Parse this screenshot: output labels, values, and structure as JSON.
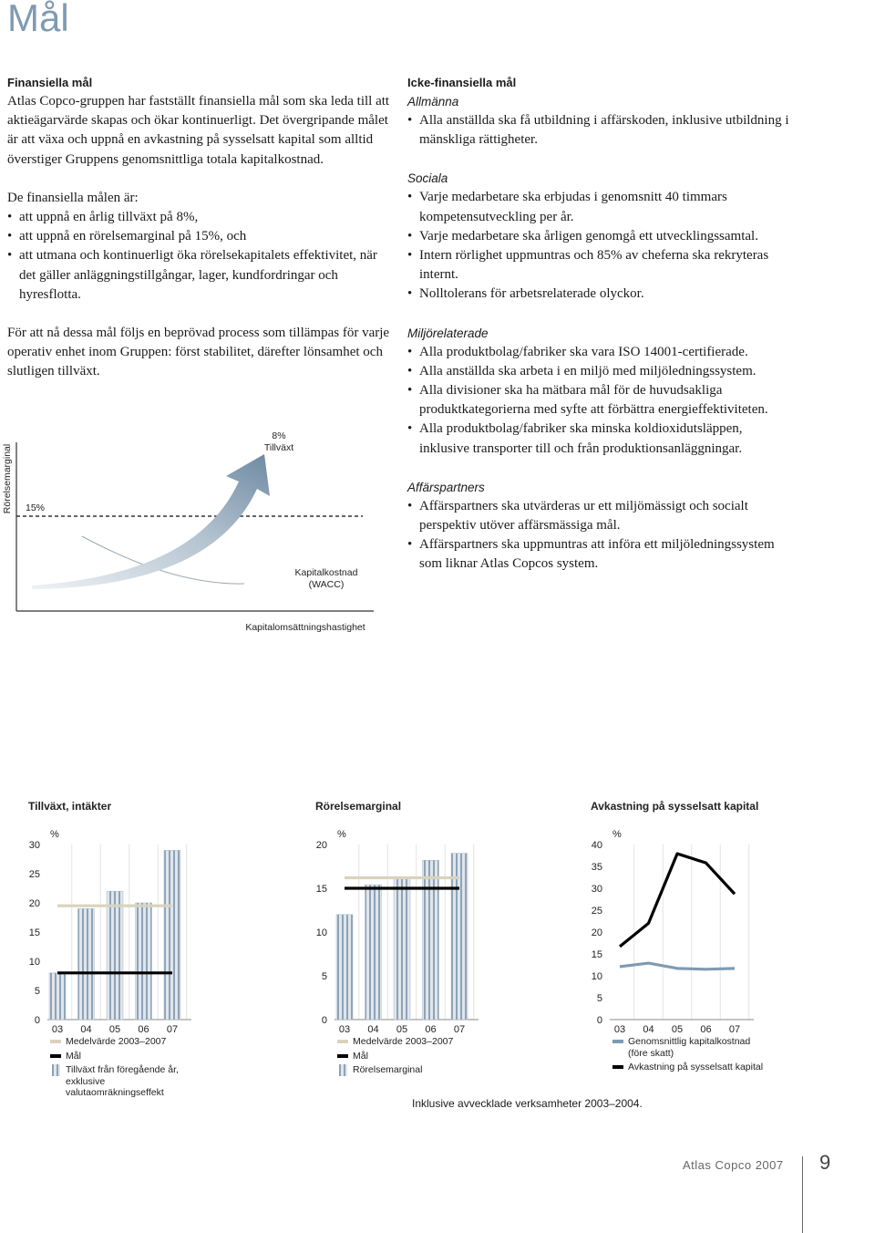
{
  "page_title": "Mål",
  "financial": {
    "heading": "Finansiella mål",
    "intro": "Atlas Copco-gruppen har fastställt finansiella mål som ska leda till att aktieägarvärde skapas och ökar kontinuerligt. Det övergripande målet är att växa och uppnå en avkastning på sysselsatt kapital som alltid överstiger Gruppens genomsnittliga totala kapitalkostnad.",
    "list_intro": "De finansiella målen är:",
    "bullets": [
      "att uppnå en årlig tillväxt på 8%,",
      "att uppnå en rörelsemarginal på 15%, och",
      "att utmana och kontinuerligt öka rörelsekapitalets effektivitet, när det gäller anläggningstillgångar, lager, kundfordringar och hyresflotta."
    ],
    "closing": "För att nå dessa mål följs en beprövad process som tillämpas för varje operativ enhet inom Gruppen: först stabilitet, därefter lönsamhet och slutligen tillväxt."
  },
  "diagram": {
    "y_label": "Rörelsemarginal",
    "x_label": "Kapitalomsättningshastighet",
    "margin_label": "15%",
    "growth_value": "8%",
    "growth_label": "Tillväxt",
    "cost_label": "Kapitalkostnad",
    "cost_abbr": "(WACC)"
  },
  "non_financial": {
    "heading": "Icke-finansiella mål",
    "sections": [
      {
        "title": "Allmänna",
        "bullets": [
          "Alla anställda ska få utbildning i affärskoden, inklusive utbildning i mänskliga rättigheter."
        ]
      },
      {
        "title": "Sociala",
        "bullets": [
          "Varje medarbetare ska erbjudas i genomsnitt 40 timmars kompetensutveckling per år.",
          "Varje medarbetare ska årligen genomgå ett utvecklingssamtal.",
          "Intern rörlighet uppmuntras och 85% av cheferna ska rekryteras internt.",
          "Nolltolerans för arbetsrelaterade olyckor."
        ]
      },
      {
        "title": "Miljörelaterade",
        "bullets": [
          "Alla produktbolag/fabriker ska vara ISO 14001-certifierade.",
          "Alla anställda ska arbeta i en miljö med miljöledningssystem.",
          "Alla divisioner ska ha mätbara mål för de huvudsakliga produktkategorierna med syfte att förbättra energieffektiviteten.",
          "Alla produktbolag/fabriker ska minska koldioxidutsläppen, inklusive transporter till och från produktionsanläggningar."
        ]
      },
      {
        "title": "Affärspartners",
        "bullets": [
          "Affärspartners ska utvärderas ur ett miljömässigt och socialt perspektiv utöver affärsmässiga mål.",
          "Affärspartners ska uppmuntras att införa ett miljöledningssystem som liknar Atlas Copcos system."
        ]
      }
    ]
  },
  "chart_data": [
    {
      "type": "bar",
      "title": "Tillväxt, intäkter",
      "y_unit": "%",
      "categories": [
        "03",
        "04",
        "05",
        "06",
        "07"
      ],
      "ylim": [
        0,
        30
      ],
      "yticks": [
        0,
        5,
        10,
        15,
        20,
        25,
        30
      ],
      "series": [
        {
          "name": "Medelvärde 2003–2007",
          "kind": "line",
          "color": "#d9d3bd",
          "values": [
            19.5,
            19.5,
            19.5,
            19.5,
            19.5
          ]
        },
        {
          "name": "Mål",
          "kind": "line",
          "color": "#000000",
          "values": [
            8,
            8,
            8,
            8,
            8
          ]
        },
        {
          "name": "Tillväxt från föregående år, exklusive valutaomräkningseffekt",
          "kind": "bar",
          "color": "#a9b8c6",
          "values": [
            8,
            19,
            22,
            20,
            29
          ]
        }
      ]
    },
    {
      "type": "bar",
      "title": "Rörelsemarginal",
      "y_unit": "%",
      "categories": [
        "03",
        "04",
        "05",
        "06",
        "07"
      ],
      "ylim": [
        0,
        20
      ],
      "yticks": [
        0,
        5,
        10,
        15,
        20
      ],
      "series": [
        {
          "name": "Medelvärde 2003–2007",
          "kind": "line",
          "color": "#d9d3bd",
          "values": [
            16.2,
            16.2,
            16.2,
            16.2,
            16.2
          ]
        },
        {
          "name": "Mål",
          "kind": "line",
          "color": "#000000",
          "values": [
            15,
            15,
            15,
            15,
            15
          ]
        },
        {
          "name": "Rörelsemarginal",
          "kind": "bar",
          "color": "#a9b8c6",
          "values": [
            12,
            15.4,
            16.1,
            18.2,
            19
          ]
        }
      ]
    },
    {
      "type": "line",
      "title": "Avkastning på sysselsatt kapital",
      "y_unit": "%",
      "categories": [
        "03",
        "04",
        "05",
        "06",
        "07"
      ],
      "ylim": [
        0,
        40
      ],
      "yticks": [
        0,
        5,
        10,
        15,
        20,
        25,
        30,
        35,
        40
      ],
      "series": [
        {
          "name": "Genomsnittlig kapitalkostnad (före skatt)",
          "kind": "line",
          "color": "#7f9bb3",
          "values": [
            12.1,
            12.9,
            11.7,
            11.5,
            11.7
          ]
        },
        {
          "name": "Avkastning på sysselsatt kapital",
          "kind": "line",
          "color": "#000000",
          "values": [
            16.7,
            22,
            37.9,
            35.8,
            28.7
          ]
        }
      ]
    }
  ],
  "note": "Inklusive avvecklade verksamheter 2003–2004.",
  "footer": {
    "brand": "Atlas Copco 2007",
    "page": "9"
  }
}
